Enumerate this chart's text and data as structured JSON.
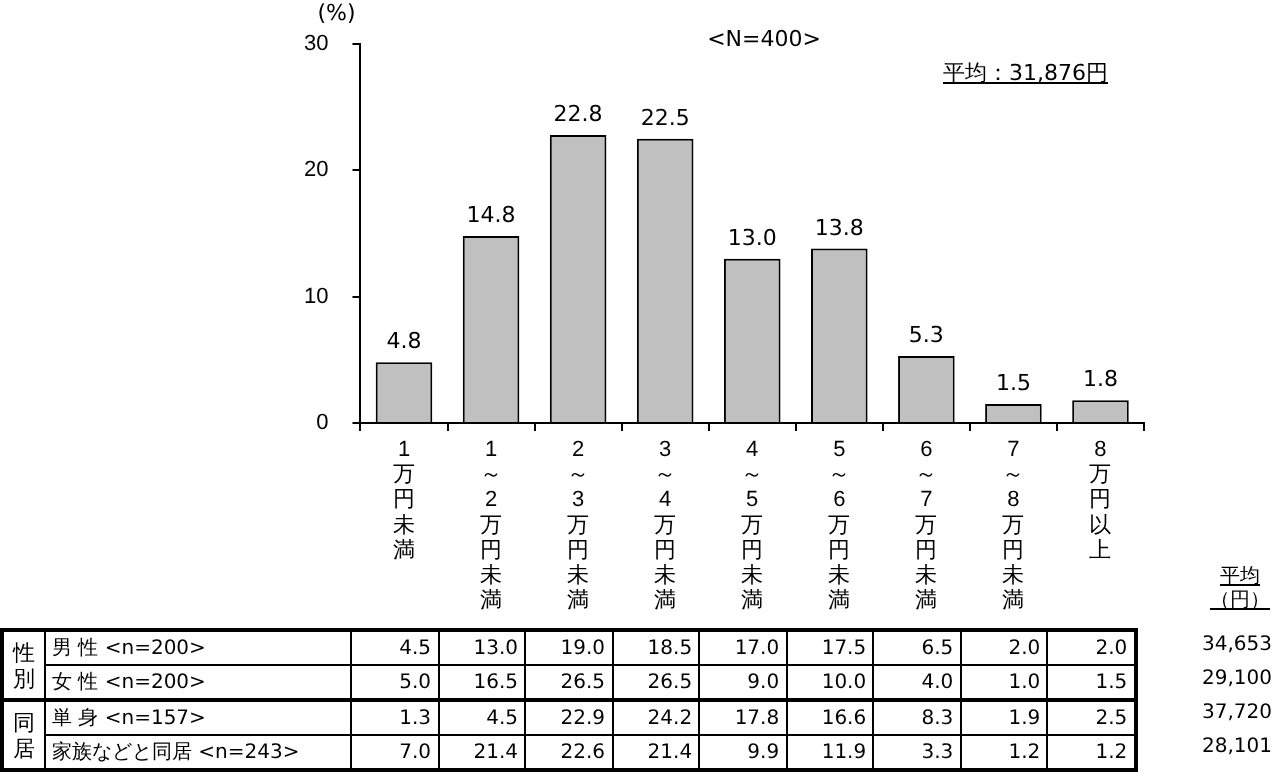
{
  "chart_data": [
    {
      "type": "bar",
      "title": "<N=400>",
      "ylabel": "(%)",
      "annotations": [
        "平均：31,876円"
      ],
      "categories": [
        "1万円未満",
        "1～2万円未満",
        "2～3万円未満",
        "3～4万円未満",
        "4～5万円未満",
        "5～6万円未満",
        "6～7万円未満",
        "7～8万円未満",
        "8万円以上"
      ],
      "values": [
        4.8,
        14.8,
        22.8,
        22.5,
        13.0,
        13.8,
        5.3,
        1.5,
        1.8
      ],
      "value_labels": [
        "4.8",
        "14.8",
        "22.8",
        "22.5",
        "13.0",
        "13.8",
        "5.3",
        "1.5",
        "1.8"
      ],
      "color": "#c0c0c0",
      "ylim": [
        0,
        30
      ],
      "yticks": [
        0,
        10,
        20,
        30
      ]
    },
    {
      "type": "other",
      "annotations": [
        "平均（円）",
        "性別",
        "同居"
      ],
      "y_categories": [
        "男 性 <n=200>",
        "女 性 <n=200>",
        "単 身 <n=157>",
        "家族などと同居 <n=243>"
      ],
      "y2_categories": [
        "34,653",
        "29,100",
        "37,720",
        "28,101"
      ],
      "cell_labels": [
        [
          "4.5",
          "13.0",
          "19.0",
          "18.5",
          "17.0",
          "17.5",
          "6.5",
          "2.0",
          "2.0"
        ],
        [
          "5.0",
          "16.5",
          "26.5",
          "26.5",
          "9.0",
          "10.0",
          "4.0",
          "1.0",
          "1.5"
        ],
        [
          "1.3",
          "4.5",
          "22.9",
          "24.2",
          "17.8",
          "16.6",
          "8.3",
          "1.9",
          "2.5"
        ],
        [
          "7.0",
          "21.4",
          "22.6",
          "21.4",
          "9.9",
          "11.9",
          "3.3",
          "1.2",
          "1.2"
        ]
      ]
    }
  ]
}
